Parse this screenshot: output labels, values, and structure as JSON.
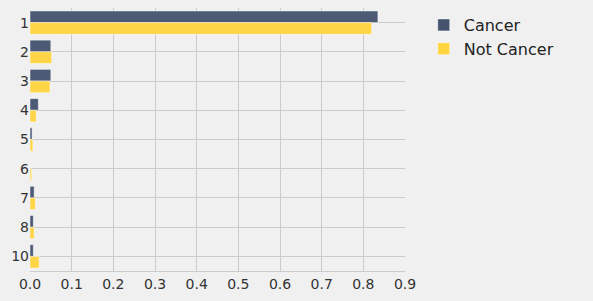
{
  "chart_data": {
    "type": "bar",
    "orientation": "horizontal",
    "categories": [
      "1",
      "2",
      "3",
      "4",
      "5",
      "6",
      "7",
      "8",
      "10"
    ],
    "series": [
      {
        "name": "Cancer",
        "color": "#45536f",
        "values": [
          0.835,
          0.05,
          0.05,
          0.02,
          0.005,
          0,
          0.01,
          0.008,
          0.008
        ]
      },
      {
        "name": "Not Cancer",
        "color": "#ffd43f",
        "values": [
          0.82,
          0.052,
          0.048,
          0.015,
          0.007,
          0.004,
          0.013,
          0.01,
          0.022
        ]
      }
    ],
    "xlim": [
      0,
      0.9
    ],
    "xticks": [
      {
        "value": 0,
        "label": "0.0"
      },
      0.1,
      0.2,
      0.3,
      0.4,
      0.5,
      0.6,
      0.7,
      0.8,
      0.9
    ],
    "grid": true,
    "legend": "upper right"
  }
}
